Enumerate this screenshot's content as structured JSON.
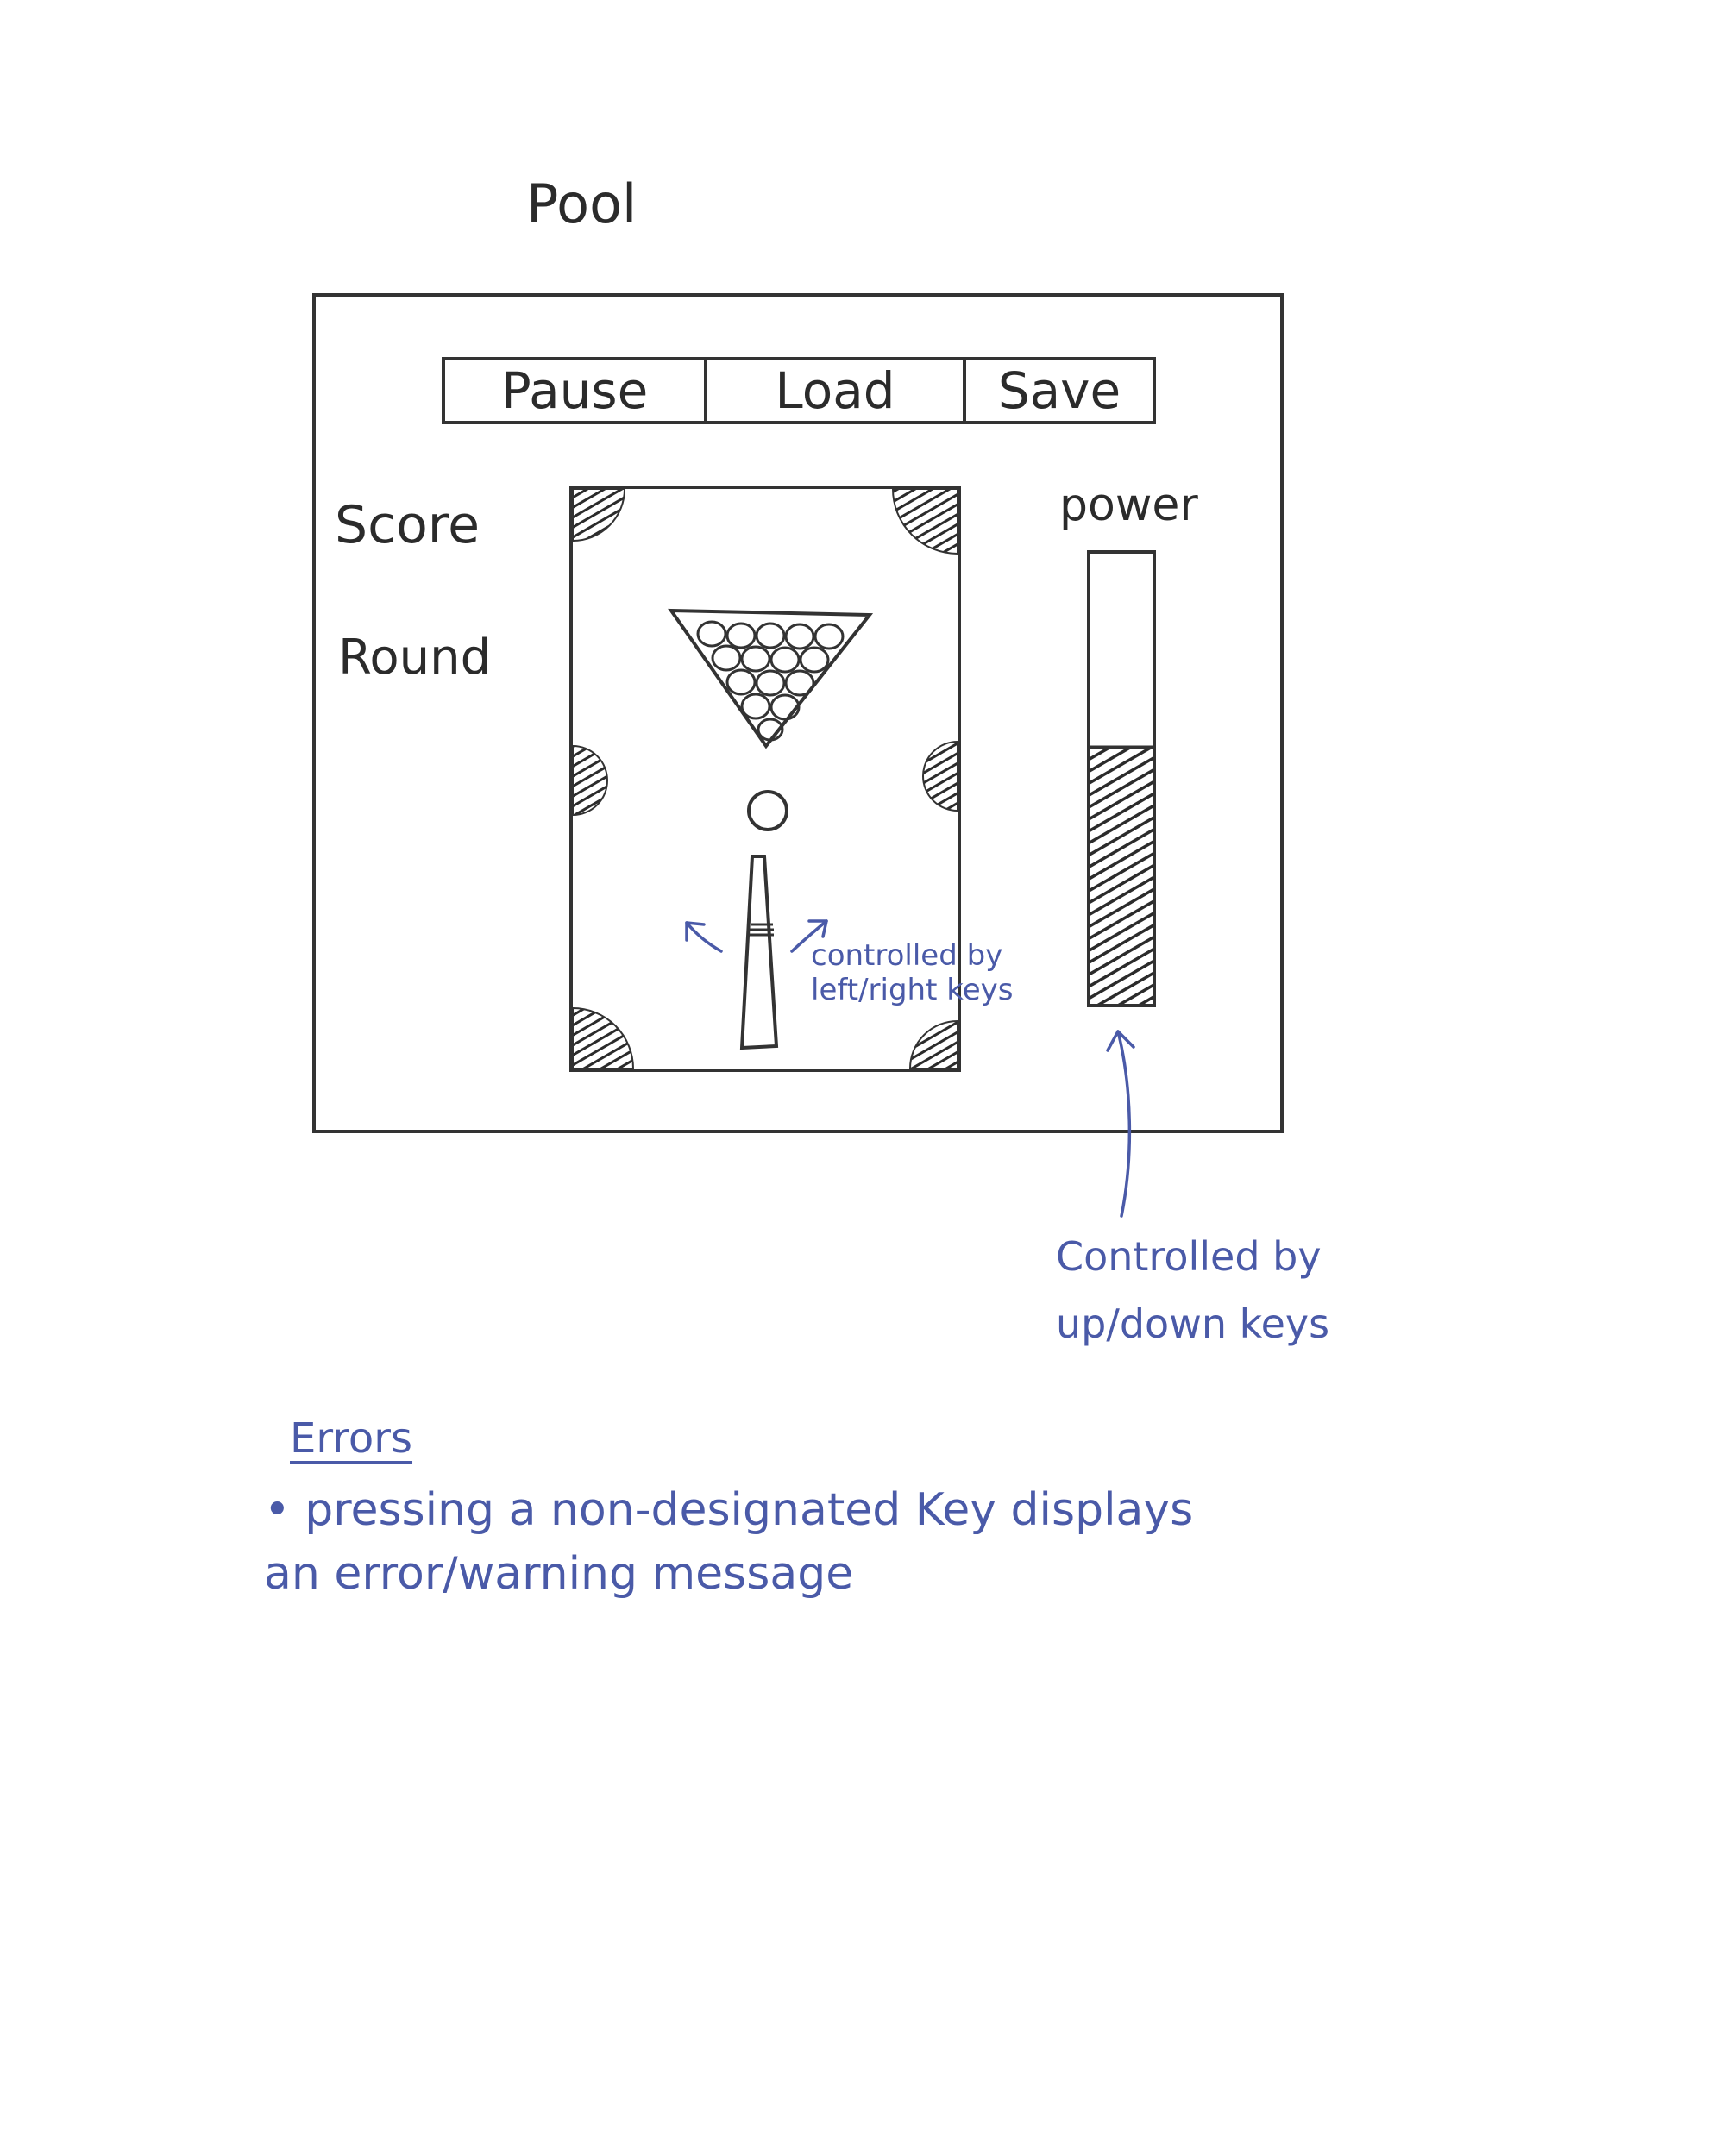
{
  "title": "Pool",
  "toolbar": {
    "pause_label": "Pause",
    "load_label": "Load",
    "save_label": "Save"
  },
  "hud": {
    "score_label": "Score",
    "round_label": "Round",
    "power_label": "power",
    "power_level": 0.57
  },
  "annotations": {
    "cue_control": "controlled by left/right keys",
    "power_control": "Controlled by up/down keys"
  },
  "errors": {
    "heading": "Errors",
    "items": [
      "pressing a non-designated Key displays an error/warning message"
    ]
  },
  "colors": {
    "pencil": "#2b2b2b",
    "annotation_ink": "#4a5aa8"
  }
}
